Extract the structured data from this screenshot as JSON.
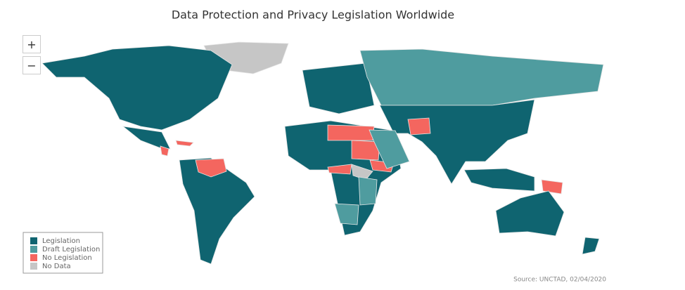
{
  "title": "Data Protection and Privacy Legislation Worldwide",
  "zoom": {
    "in": "+",
    "out": "−"
  },
  "legend": [
    {
      "label": "Legislation",
      "color": "#0f6470"
    },
    {
      "label": "Draft Legislation",
      "color": "#4f9c9f"
    },
    {
      "label": "No Legislation",
      "color": "#f4665f"
    },
    {
      "label": "No Data",
      "color": "#c6c6c6"
    }
  ],
  "source": "Source: UNCTAD, 02/04/2020"
}
